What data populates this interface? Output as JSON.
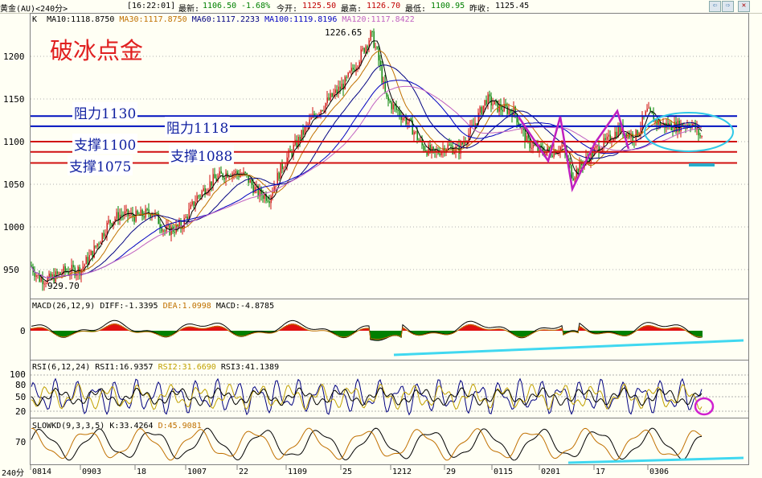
{
  "topbar": {
    "symbol": "黄金(AU)<240分>",
    "time": "[16:22:01]",
    "latest_label": "最新:",
    "latest": "1106.50",
    "change": "-1.68%",
    "open_label": "今开:",
    "open": "1125.50",
    "high_label": "最高:",
    "high": "1126.70",
    "low_label": "最低:",
    "low": "1100.95",
    "prev_label": "昨收:",
    "prev": "1125.45",
    "nav_left_icon": "arrow-left-icon",
    "nav_right_icon": "arrow-right-icon",
    "close_icon": "close-icon"
  },
  "ma_legend": {
    "k": "K",
    "ma10": "MA10:1118.8750",
    "ma30": "MA30:1117.8750",
    "ma60": "MA60:1117.2233",
    "ma100": "MA100:1119.8196",
    "ma120": "MA120:1117.8422",
    "colors": {
      "ma10": "#000000",
      "ma30": "#c07000",
      "ma60": "#000080",
      "ma100": "#0000c0",
      "ma120": "#c060c0"
    }
  },
  "annotations": {
    "headline": "破冰点金",
    "resistance1": "阻力1130",
    "resistance2": "阻力1118",
    "support1": "支撑1100",
    "support2": "支撑1088",
    "support3": "支撑1075",
    "peak": "1226.65",
    "trough": "929.70"
  },
  "price_axis": [
    "1200",
    "1150",
    "1100",
    "1050",
    "1000",
    "950"
  ],
  "macd": {
    "label": "MACD(26,12,9)",
    "diff": "DIFF:-1.3395",
    "dea": "DEA:1.0998",
    "macd": "MACD:-4.8785",
    "zero": "0"
  },
  "rsi": {
    "label": "RSI(6,12,24)",
    "rsi1": "RSI1:16.9357",
    "rsi2": "RSI2:31.6690",
    "rsi3": "RSI3:41.1389",
    "ticks": [
      "100",
      "80",
      "50",
      "20"
    ]
  },
  "slowkd": {
    "label": "SLOWKD(9,3,3,5)",
    "k": "K:33.4264",
    "d": "D:45.9081",
    "ticks": [
      "70"
    ]
  },
  "date_axis": {
    "period": "240分",
    "dates": [
      "0814",
      "0903",
      "18",
      "1007",
      "22",
      "1109",
      "25",
      "1212",
      "29",
      "0115",
      "0201",
      "17",
      "0306"
    ]
  }
}
